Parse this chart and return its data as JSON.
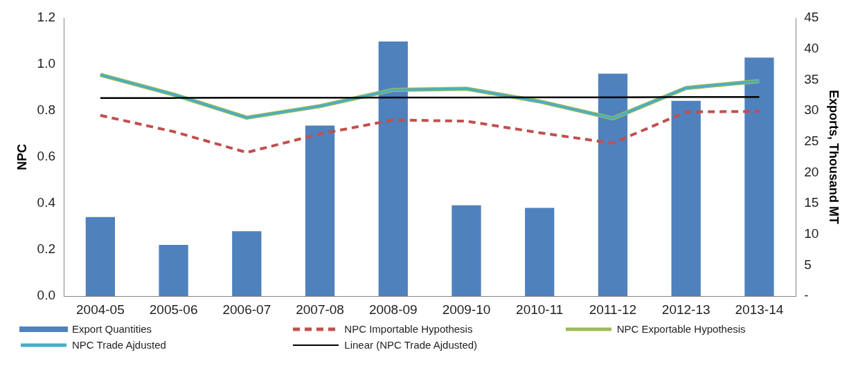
{
  "chart_data": {
    "type": "bar",
    "ylabel": "NPC",
    "y2label": "Exports, Thousand MT",
    "categories": [
      "2004-05",
      "2005-06",
      "2006-07",
      "2007-08",
      "2008-09",
      "2009-10",
      "2010-11",
      "2011-12",
      "2012-13",
      "2013-14"
    ],
    "series": [
      {
        "name": "Export Quantities",
        "axis": "y2",
        "color": "#4f81bd",
        "values": [
          12.8,
          8.3,
          10.5,
          27.6,
          41.2,
          14.7,
          14.3,
          36.0,
          31.6,
          38.6
        ]
      },
      {
        "name": "NPC Importable Hypothesis",
        "type": "line",
        "line_style": "dashed",
        "color": "#c0504d",
        "values": [
          0.78,
          0.71,
          0.62,
          0.7,
          0.76,
          0.755,
          0.705,
          0.66,
          0.795,
          0.797
        ]
      },
      {
        "name": "NPC Exportable Hypothesis",
        "type": "line",
        "line_style": "solid",
        "color": "#9bbb59",
        "values": [
          0.955,
          0.87,
          0.77,
          0.82,
          0.89,
          0.895,
          0.84,
          0.767,
          0.898,
          0.928
        ]
      },
      {
        "name": "NPC Trade Ajdusted",
        "type": "line",
        "line_style": "solid",
        "color": "#4bacc6",
        "values": [
          0.955,
          0.87,
          0.77,
          0.82,
          0.89,
          0.895,
          0.84,
          0.767,
          0.898,
          0.928
        ]
      },
      {
        "name": "Linear (NPC Trade Ajdusted)",
        "type": "line",
        "line_style": "solid",
        "color": "#000000",
        "values": [
          0.855,
          0.855,
          0.856,
          0.856,
          0.857,
          0.857,
          0.858,
          0.858,
          0.859,
          0.859
        ]
      }
    ],
    "ylim": [
      0,
      1.2
    ],
    "yticks": [
      {
        "value": 0,
        "label": "0.0"
      },
      {
        "value": 0.2,
        "label": "0.2"
      },
      {
        "value": 0.4,
        "label": "0.4"
      },
      {
        "value": 0.6,
        "label": "0.6"
      },
      {
        "value": 0.8,
        "label": "0.8"
      },
      {
        "value": 1,
        "label": "1.0"
      },
      {
        "value": 1.2,
        "label": "1.2"
      }
    ],
    "y2lim": [
      0,
      45
    ],
    "y2ticks": [
      {
        "value": 0,
        "label": "-"
      },
      5,
      10,
      15,
      20,
      25,
      30,
      35,
      40,
      45
    ],
    "grid": false,
    "legend": "bottom",
    "marker": "none"
  }
}
